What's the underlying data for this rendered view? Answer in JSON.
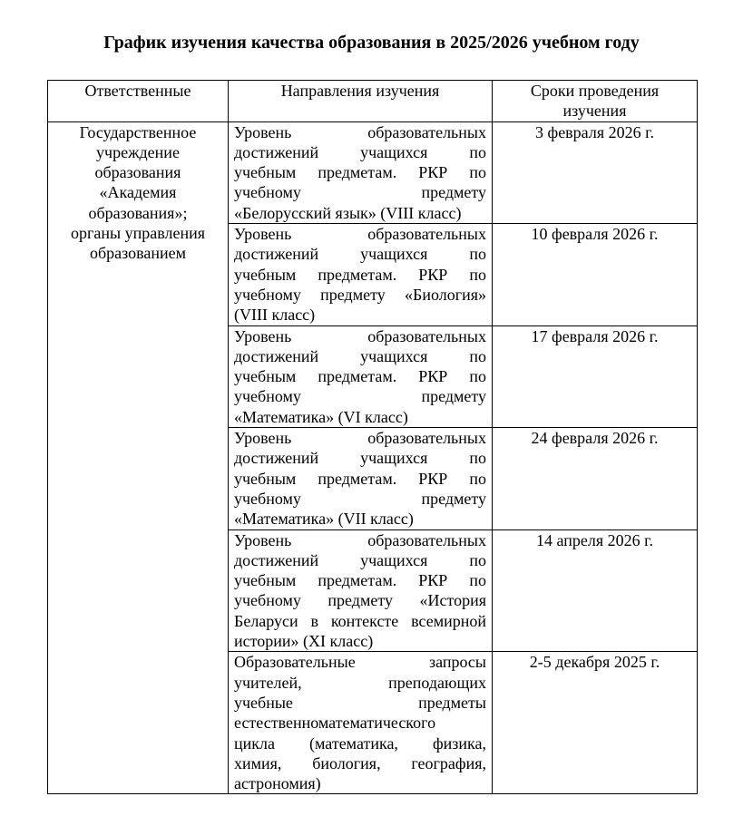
{
  "title": "График изучения качества образования в 2025/2026 учебном году",
  "headers": [
    "Ответственные",
    "Направления изучения",
    "Сроки проведения изучения"
  ],
  "responsible_lines": [
    "Государственное",
    "учреждение",
    "образования",
    "«Академия",
    "образования»;",
    "органы управления",
    "образованием"
  ],
  "rows": [
    {
      "direction_lines": [
        "Уровень образовательных",
        "достижений учащихся по",
        "учебным предметам. РКР по",
        "учебному предмету",
        "«Белорусский язык» (VIII класс)"
      ],
      "date": "3 февраля 2026 г."
    },
    {
      "direction_lines": [
        "Уровень образовательных",
        "достижений учащихся по",
        "учебным предметам. РКР по",
        "учебному предмету «Биология»",
        "(VIII класс)"
      ],
      "date": "10 февраля 2026 г."
    },
    {
      "direction_lines": [
        "Уровень образовательных",
        "достижений учащихся по",
        "учебным предметам. РКР по",
        "учебному предмету",
        "«Математика» (VI класс)"
      ],
      "date": "17 февраля 2026 г."
    },
    {
      "direction_lines": [
        "Уровень образовательных",
        "достижений учащихся по",
        "учебным предметам. РКР по",
        "учебному предмету",
        "«Математика» (VII класс)"
      ],
      "date": "24 февраля 2026 г."
    },
    {
      "direction_lines": [
        "Уровень образовательных",
        "достижений учащихся по",
        "учебным предметам. РКР по",
        "учебному предмету «История",
        "Беларуси в контексте всемирной",
        "истории» (XI класс)"
      ],
      "date": "14 апреля 2026 г."
    },
    {
      "direction_lines": [
        "Образовательные запросы",
        "учителей, преподающих",
        "учебные предметы",
        "естественноматематического",
        "цикла (математика, физика,",
        "химия, биология, география,",
        "астрономия)"
      ],
      "date": "2-5 декабря 2025 г."
    }
  ]
}
